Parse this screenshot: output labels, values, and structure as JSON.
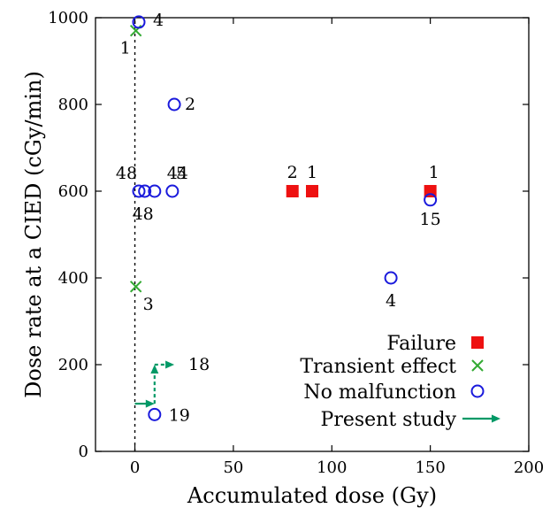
{
  "chart_data": {
    "type": "scatter",
    "title": "",
    "xlabel": "Accumulated dose (Gy)",
    "ylabel": "Dose rate at a CIED (cGy/min)",
    "xlim": [
      -20,
      200
    ],
    "ylim": [
      0,
      1000
    ],
    "xticks": [
      "0",
      "50",
      "100",
      "150",
      "200"
    ],
    "yticks": [
      "0",
      "200",
      "400",
      "600",
      "800",
      "1000"
    ],
    "grid": false,
    "legend_position": "bottom-right",
    "colors": {
      "failure": "#ee1111",
      "transient": "#33aa33",
      "none": "#1a1adc",
      "present": "#009966"
    },
    "series": [
      {
        "name": "Failure",
        "marker": "filled-square",
        "color": "#ee1111",
        "points": [
          {
            "x": 80,
            "y": 600
          },
          {
            "x": 90,
            "y": 600
          },
          {
            "x": 150,
            "y": 600
          }
        ]
      },
      {
        "name": "Transient effect",
        "marker": "x",
        "color": "#33aa33",
        "points": [
          {
            "x": 0.5,
            "y": 970
          },
          {
            "x": 0.5,
            "y": 380
          }
        ]
      },
      {
        "name": "No malfunction",
        "marker": "open-circle",
        "color": "#1a1adc",
        "points": [
          {
            "x": 2,
            "y": 990
          },
          {
            "x": 20,
            "y": 800
          },
          {
            "x": 2,
            "y": 600
          },
          {
            "x": 5,
            "y": 600
          },
          {
            "x": 10,
            "y": 600
          },
          {
            "x": 19,
            "y": 600
          },
          {
            "x": 150,
            "y": 580
          },
          {
            "x": 130,
            "y": 400
          },
          {
            "x": 10,
            "y": 85
          }
        ]
      },
      {
        "name": "Present study",
        "marker": "arrow",
        "color": "#009966",
        "path": [
          {
            "x": 0,
            "y": 110
          },
          {
            "x": 10,
            "y": 110
          },
          {
            "x": 10,
            "y": 200
          },
          {
            "x": 20,
            "y": 200
          }
        ]
      }
    ],
    "vertical_reference": {
      "x": 0,
      "style": "dotted"
    },
    "annotations": [
      {
        "text": "4",
        "x": 2,
        "y": 990
      },
      {
        "text": "1",
        "x": 0.5,
        "y": 970
      },
      {
        "text": "2",
        "x": 20,
        "y": 800
      },
      {
        "text": "48",
        "x": 2,
        "y": 600
      },
      {
        "text": "48",
        "x": 5,
        "y": 600
      },
      {
        "text": "44",
        "x": 10,
        "y": 600
      },
      {
        "text": "5",
        "x": 19,
        "y": 600
      },
      {
        "text": "2",
        "x": 80,
        "y": 600
      },
      {
        "text": "1",
        "x": 90,
        "y": 600
      },
      {
        "text": "1",
        "x": 150,
        "y": 600
      },
      {
        "text": "15",
        "x": 150,
        "y": 580
      },
      {
        "text": "4",
        "x": 130,
        "y": 400
      },
      {
        "text": "3",
        "x": 0.5,
        "y": 380
      },
      {
        "text": "18",
        "x": 20,
        "y": 200
      },
      {
        "text": "19",
        "x": 10,
        "y": 85
      }
    ],
    "legend": [
      "Failure",
      "Transient effect",
      "No malfunction",
      "Present study"
    ]
  }
}
